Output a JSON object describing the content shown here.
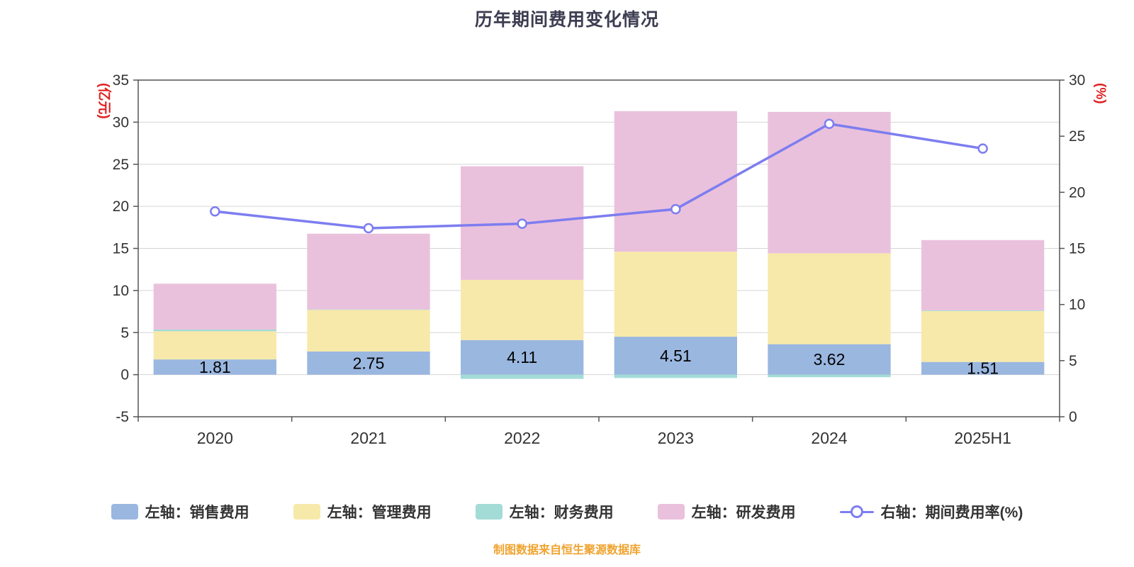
{
  "footer": {
    "source_note": "制图数据来自恒生聚源数据库"
  },
  "chart_data": {
    "type": "bar",
    "subtype": "stacked-bar-with-line",
    "title": "历年期间费用变化情况",
    "categories": [
      "2020",
      "2021",
      "2022",
      "2023",
      "2024",
      "2025H1"
    ],
    "left_axis": {
      "label": "(亿元)",
      "min": -5,
      "max": 35,
      "step": 5,
      "ticks": [
        35,
        30,
        25,
        20,
        15,
        10,
        5,
        0,
        -5
      ]
    },
    "right_axis": {
      "label": "(%)",
      "min": 0,
      "max": 30,
      "step": 5,
      "ticks": [
        30,
        25,
        20,
        15,
        10,
        5,
        0
      ]
    },
    "grid": true,
    "legend_position": "bottom",
    "bar_width_frac": 0.8,
    "series": [
      {
        "key": "sales",
        "name": "左轴：销售费用",
        "color": "#9ab7e0",
        "values": [
          1.81,
          2.75,
          4.11,
          4.51,
          3.62,
          1.51
        ]
      },
      {
        "key": "admin",
        "name": "左轴：管理费用",
        "color": "#f7e9a9",
        "values": [
          3.35,
          4.95,
          7.15,
          10.1,
          10.8,
          6.05
        ]
      },
      {
        "key": "finance",
        "name": "左轴：财务费用",
        "color": "#a3dbd7",
        "values": [
          0.2,
          0.05,
          -0.5,
          -0.4,
          -0.3,
          0.08
        ]
      },
      {
        "key": "rnd",
        "name": "左轴：研发费用",
        "color": "#eac1dc",
        "values": [
          5.45,
          9.0,
          13.5,
          16.7,
          16.8,
          8.35
        ]
      }
    ],
    "line": {
      "key": "rate",
      "name": "右轴：期间费用率(%)",
      "color": "#7d7df0",
      "marker_fill": "#ffffff",
      "values": [
        18.3,
        16.8,
        17.2,
        18.5,
        26.1,
        23.9
      ]
    },
    "bar_labels": [
      "1.81",
      "2.75",
      "4.11",
      "4.51",
      "3.62",
      "1.51"
    ],
    "colors": {
      "grid": "#d6d6d6",
      "frame": "#555555",
      "text": "#333333",
      "axis_unit": "#e02020",
      "bar_label": "#000000",
      "title": "#3d3d52",
      "footer": "#f0a32f",
      "background": "#ffffff"
    }
  }
}
